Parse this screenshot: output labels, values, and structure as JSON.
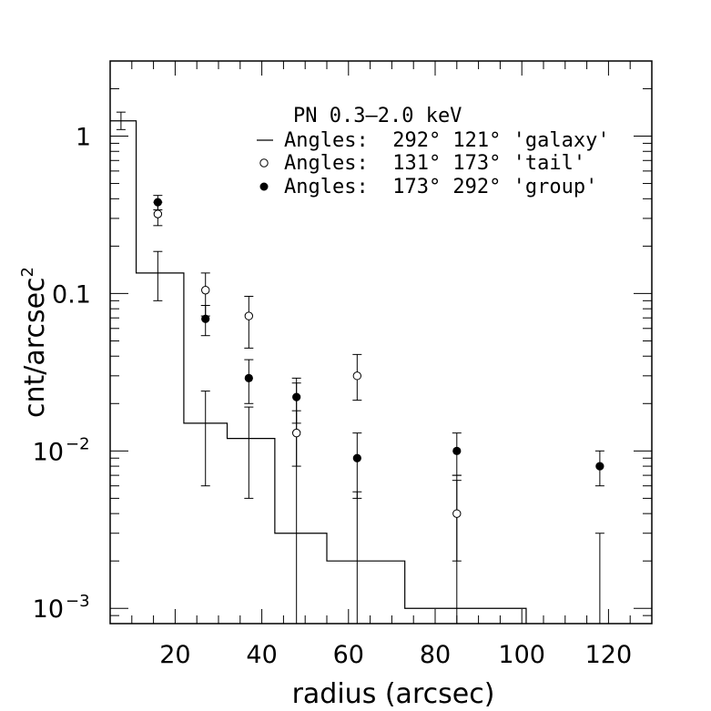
{
  "chart_data": {
    "type": "scatter",
    "title": "PN 0.3–2.0 keV",
    "xlabel": "radius (arcsec)",
    "ylabel": "cnt/arcsec",
    "ylabel_sup": "2",
    "xlim": [
      5,
      130
    ],
    "ylim": [
      0.0008,
      3.0
    ],
    "yscale": "log",
    "xticks": [
      20,
      40,
      60,
      80,
      100,
      120
    ],
    "xtick_labels": [
      "20",
      "40",
      "60",
      "80",
      "100",
      "120"
    ],
    "yticks": [
      {
        "value": 1,
        "label": "1",
        "sup": ""
      },
      {
        "value": 0.1,
        "label": "0.1",
        "sup": ""
      },
      {
        "value": 0.01,
        "label": "10",
        "sup": "−2"
      },
      {
        "value": 0.001,
        "label": "10",
        "sup": "−3"
      }
    ],
    "legend": {
      "placement": "top-right",
      "entries": [
        {
          "marker": "line",
          "label": "Angles:  292° 121° 'galaxy'"
        },
        {
          "marker": "open-circle",
          "label": "Angles:  131° 173° 'tail'"
        },
        {
          "marker": "filled-circle",
          "label": "Angles:  173° 292° 'group'"
        }
      ]
    },
    "series": [
      {
        "name": "galaxy",
        "style": "step",
        "bins": [
          {
            "x0": 5,
            "x1": 11,
            "y": 1.25,
            "xc": 7.5,
            "err": [
              1.1,
              1.42
            ]
          },
          {
            "x0": 11,
            "x1": 22,
            "y": 0.135,
            "xc": 16,
            "err": [
              0.09,
              0.185
            ]
          },
          {
            "x0": 22,
            "x1": 32,
            "y": 0.015,
            "xc": 27,
            "err": [
              0.006,
              0.024
            ]
          },
          {
            "x0": 32,
            "x1": 43,
            "y": 0.012,
            "xc": 37,
            "err": [
              0.005,
              0.019
            ]
          },
          {
            "x0": 43,
            "x1": 55,
            "y": 0.003,
            "xc": 48,
            "err": [
              0.0008,
              0.029
            ]
          },
          {
            "x0": 55,
            "x1": 73,
            "y": 0.002,
            "xc": 62,
            "err": [
              0.0008,
              0.0055
            ]
          },
          {
            "x0": 73,
            "x1": 101,
            "y": 0.001,
            "xc": 85,
            "err": [
              0.0008,
              0.007
            ]
          },
          {
            "x0": 101,
            "x1": 101,
            "y": 0.001,
            "xc": 118,
            "err": [
              0.0008,
              0.003
            ]
          }
        ]
      },
      {
        "name": "tail",
        "style": "open-circle",
        "points": [
          {
            "x": 16,
            "y": 0.32,
            "err": [
              0.27,
              0.38
            ]
          },
          {
            "x": 27,
            "y": 0.105,
            "err": [
              0.072,
              0.135
            ]
          },
          {
            "x": 37,
            "y": 0.072,
            "err": [
              0.045,
              0.096
            ]
          },
          {
            "x": 48,
            "y": 0.013,
            "err": [
              0.008,
              0.018
            ]
          },
          {
            "x": 62,
            "y": 0.03,
            "err": [
              0.021,
              0.041
            ]
          },
          {
            "x": 85,
            "y": 0.004,
            "err": [
              0.002,
              0.0065
            ]
          }
        ]
      },
      {
        "name": "group",
        "style": "filled-circle",
        "points": [
          {
            "x": 16,
            "y": 0.38,
            "err": [
              0.34,
              0.42
            ]
          },
          {
            "x": 27,
            "y": 0.069,
            "err": [
              0.054,
              0.084
            ]
          },
          {
            "x": 37,
            "y": 0.029,
            "err": [
              0.02,
              0.038
            ]
          },
          {
            "x": 48,
            "y": 0.022,
            "err": [
              0.015,
              0.027
            ]
          },
          {
            "x": 62,
            "y": 0.009,
            "err": [
              0.005,
              0.013
            ]
          },
          {
            "x": 85,
            "y": 0.01,
            "err": [
              0.007,
              0.013
            ]
          },
          {
            "x": 118,
            "y": 0.008,
            "err": [
              0.006,
              0.01
            ]
          }
        ]
      }
    ]
  }
}
